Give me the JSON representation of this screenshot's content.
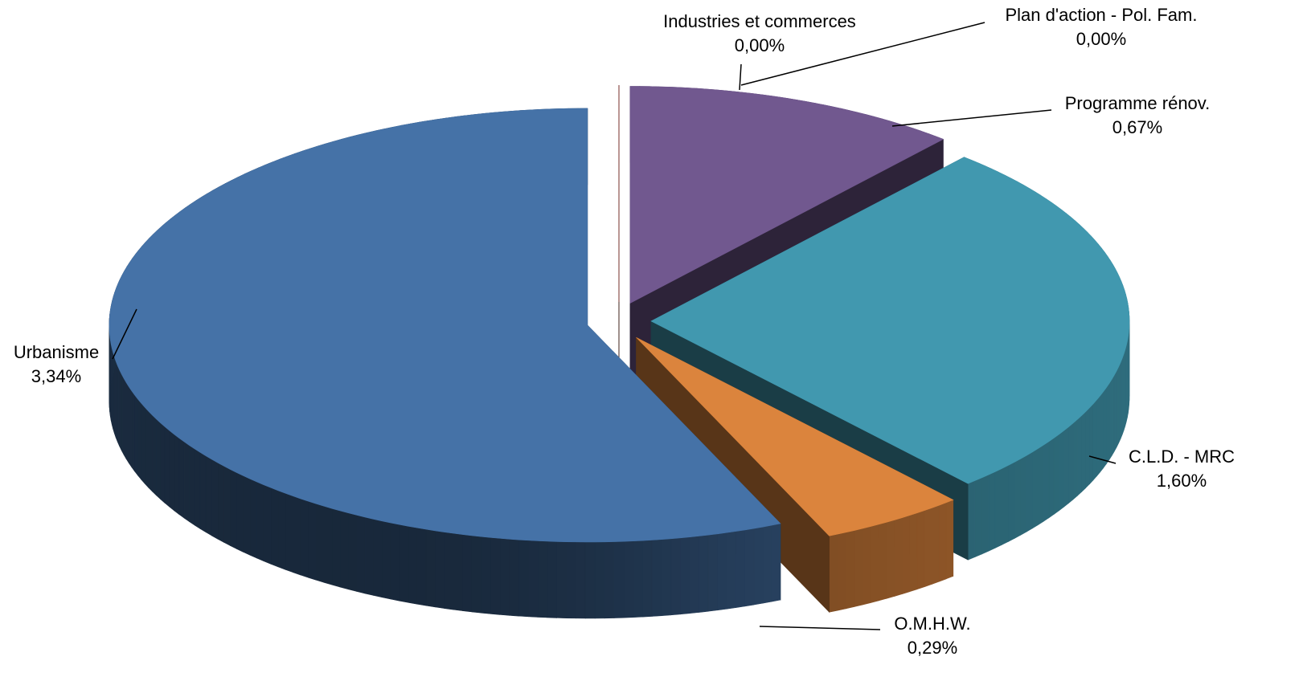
{
  "chart_data": {
    "type": "pie3d",
    "categories": [
      "Industries et commerces",
      "Plan d'action - Pol. Fam.",
      "Programme rénov.",
      "C.L.D.  - MRC",
      "O.M.H.W.",
      "Urbanisme"
    ],
    "values": [
      0.0,
      0.0,
      0.67,
      1.6,
      0.29,
      3.34
    ],
    "value_labels": [
      "0,00%",
      "0,00%",
      "0,67%",
      "1,60%",
      "0,29%",
      "3,34%"
    ],
    "colors": [
      "#77933c",
      "#953735",
      "#71588f",
      "#4198af",
      "#db843d",
      "#4572a7"
    ]
  }
}
